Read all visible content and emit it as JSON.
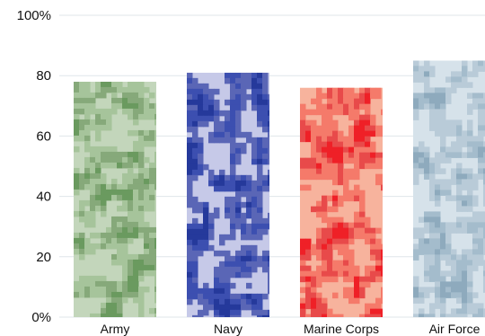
{
  "chart_data": {
    "type": "bar",
    "title": "",
    "xlabel": "",
    "ylabel": "",
    "ylim": [
      0,
      100
    ],
    "y_ticks": [
      "0%",
      "20",
      "40",
      "60",
      "80",
      "100%"
    ],
    "categories": [
      "Army",
      "Navy",
      "Marine Corps",
      "Air Force"
    ],
    "values": [
      78,
      81,
      76,
      85
    ],
    "grid": true,
    "legend": "none",
    "bar_palettes": [
      {
        "name": "Army",
        "colors": [
          "#6a9a5f",
          "#a6c49b",
          "#c3d6bb",
          "#86a97a"
        ]
      },
      {
        "name": "Navy",
        "colors": [
          "#25399b",
          "#5a66b6",
          "#c6c9e8",
          "#3c4fb0"
        ]
      },
      {
        "name": "Marine Corps",
        "colors": [
          "#ef2027",
          "#f57a6a",
          "#f7b39d",
          "#e84a4a"
        ]
      },
      {
        "name": "Air Force",
        "colors": [
          "#8eaabd",
          "#b9cbd8",
          "#d6e2ea",
          "#a4bccc"
        ]
      }
    ],
    "grid_color": "#dfe6ea"
  }
}
